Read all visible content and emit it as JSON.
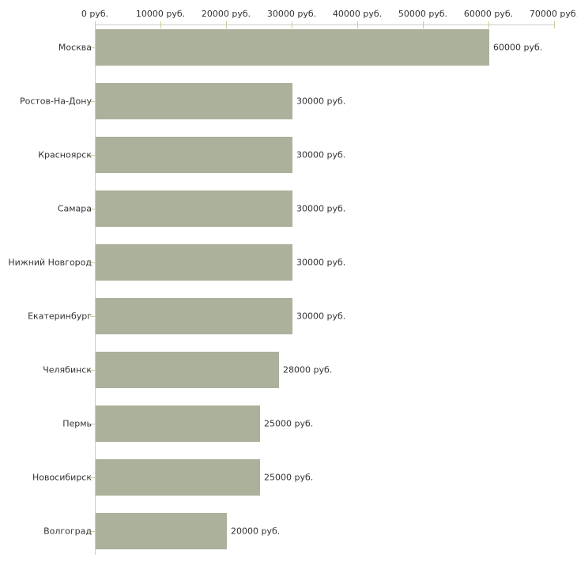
{
  "chart_data": {
    "type": "bar",
    "orientation": "horizontal",
    "categories": [
      "Москва",
      "Ростов-На-Дону",
      "Красноярск",
      "Самара",
      "Нижний Новгород",
      "Екатеринбург",
      "Челябинск",
      "Пермь",
      "Новосибирск",
      "Волгоград"
    ],
    "values": [
      60000,
      30000,
      30000,
      30000,
      30000,
      30000,
      28000,
      25000,
      25000,
      20000
    ],
    "value_labels": [
      "60000 руб.",
      "30000 руб.",
      "30000 руб.",
      "30000 руб.",
      "30000 руб.",
      "30000 руб.",
      "28000 руб.",
      "25000 руб.",
      "25000 руб.",
      "20000 руб."
    ],
    "x_axis": {
      "position": "top",
      "xlim": [
        0,
        70000
      ],
      "tick_step": 10000,
      "ticks": [
        0,
        10000,
        20000,
        30000,
        40000,
        50000,
        60000,
        70000
      ],
      "tick_labels": [
        "0 руб.",
        "10000 руб.",
        "20000 руб.",
        "30000 руб.",
        "40000 руб.",
        "50000 руб.",
        "60000 руб.",
        "70000 руб."
      ]
    },
    "grid": false,
    "colors": {
      "bar": "#abb19b",
      "axis_line": "#cccccc",
      "tick_mark": "#cccc99",
      "text": "#333333",
      "background": "#ffffff"
    }
  }
}
